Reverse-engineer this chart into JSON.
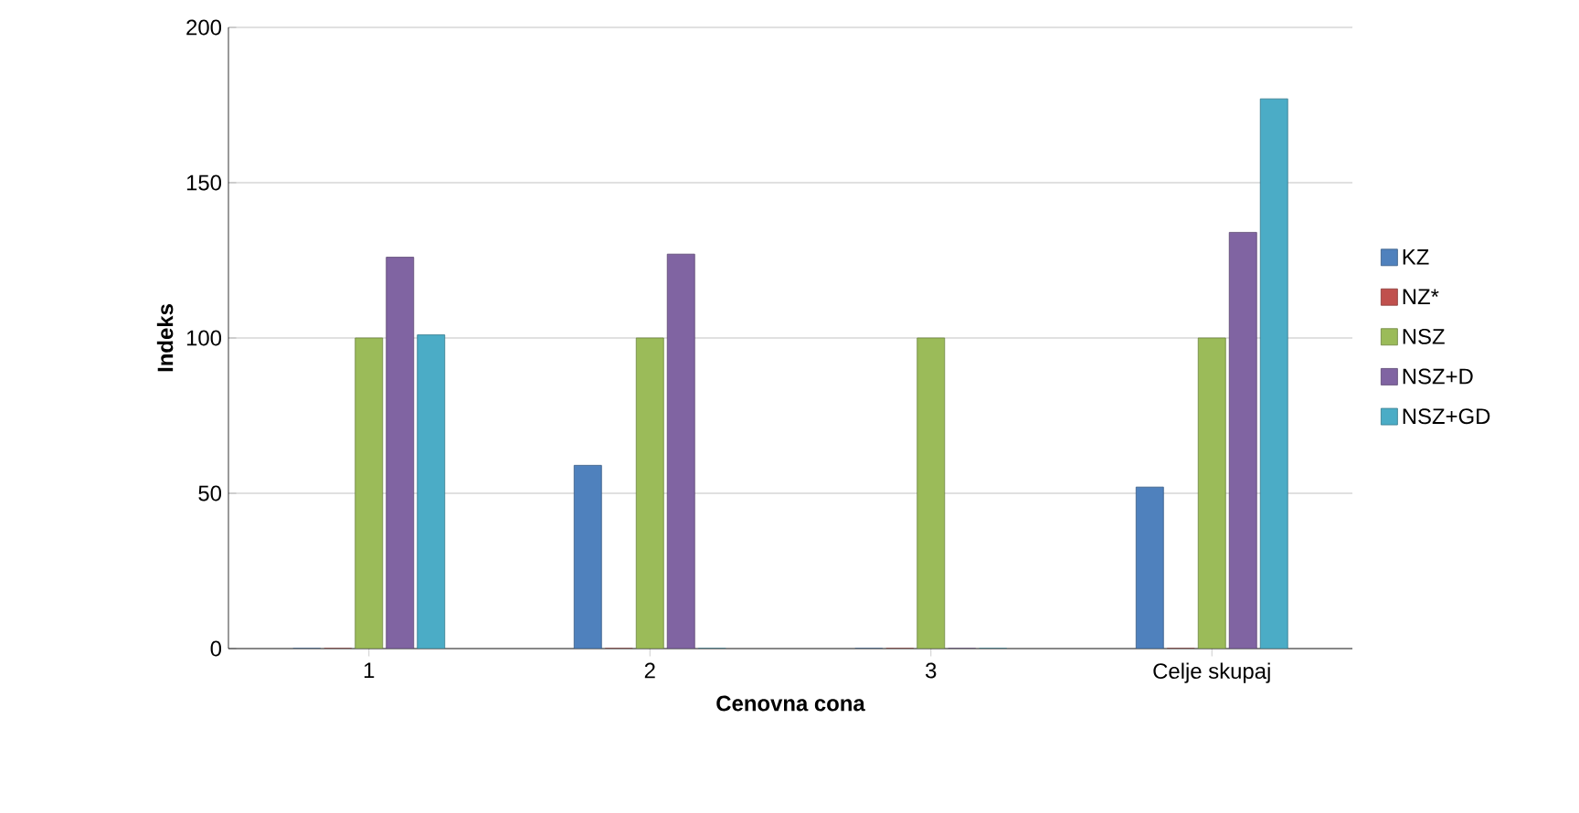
{
  "chart_data": {
    "type": "bar",
    "xlabel": "Cenovna cona",
    "ylabel": "Indeks",
    "categories": [
      "1",
      "2",
      "3",
      "Celje skupaj"
    ],
    "series": [
      {
        "name": "KZ",
        "color": "#4f81bd",
        "values": [
          0,
          59,
          0,
          52
        ]
      },
      {
        "name": "NZ*",
        "color": "#c0504d",
        "values": [
          0,
          0,
          0,
          0
        ]
      },
      {
        "name": "NSZ",
        "color": "#9bbb59",
        "values": [
          100,
          100,
          100,
          100
        ]
      },
      {
        "name": "NSZ+D",
        "color": "#8064a2",
        "values": [
          126,
          127,
          0,
          134
        ]
      },
      {
        "name": "NSZ+GD",
        "color": "#4bacc6",
        "values": [
          101,
          0,
          0,
          177
        ]
      }
    ],
    "ylim": [
      0,
      200
    ],
    "yticks": [
      0,
      50,
      100,
      150,
      200
    ],
    "grid": "y",
    "legend": "right"
  }
}
